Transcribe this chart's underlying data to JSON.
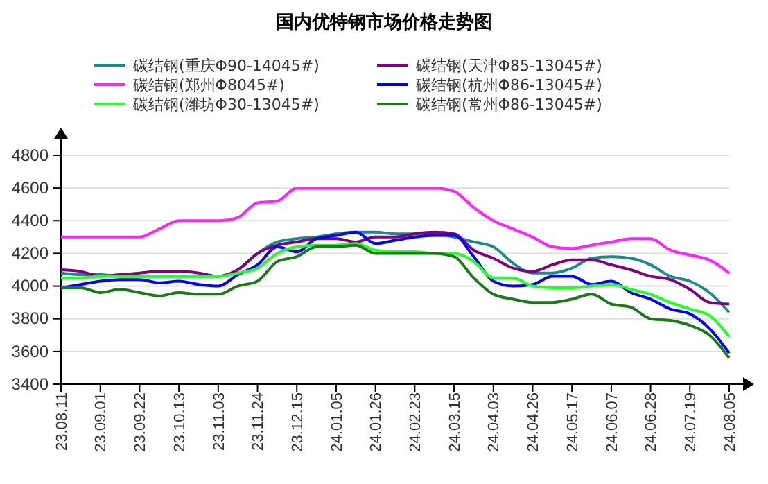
{
  "chart_data": {
    "type": "line",
    "title": "国内优特钢市场价格走势图",
    "categories": [
      "23.08.11",
      null,
      "23.09.01",
      null,
      "23.09.22",
      null,
      "23.10.13",
      null,
      "23.11.03",
      null,
      "23.11.24",
      null,
      "23.12.15",
      null,
      "24.01.05",
      null,
      "24.01.26",
      null,
      "24.02.23",
      null,
      "24.03.15",
      null,
      "24.04.03",
      null,
      "24.04.26",
      null,
      "24.05.17",
      null,
      "24.06.07",
      null,
      "24.06.28",
      null,
      "24.07.19",
      null,
      "24.08.05"
    ],
    "series": [
      {
        "name": "碳结钢(重庆Φ90-14045#)",
        "color": "#1a8a8a",
        "values": [
          4080,
          4070,
          4070,
          4060,
          4060,
          4060,
          4060,
          4060,
          4060,
          4100,
          4200,
          4270,
          4290,
          4300,
          4320,
          4330,
          4330,
          4320,
          4320,
          4320,
          4300,
          4270,
          4240,
          4140,
          4080,
          4080,
          4110,
          4170,
          4180,
          4170,
          4130,
          4060,
          4030,
          3960,
          3840
        ]
      },
      {
        "name": "碳结钢(天津Φ85-13045#)",
        "color": "#800080",
        "values": [
          4100,
          4090,
          4060,
          4070,
          4080,
          4090,
          4090,
          4080,
          4060,
          4100,
          4200,
          4250,
          4270,
          4290,
          4290,
          4270,
          4300,
          4300,
          4320,
          4330,
          4320,
          4220,
          4170,
          4110,
          4090,
          4130,
          4160,
          4160,
          4130,
          4100,
          4060,
          4040,
          3980,
          3900,
          3890
        ]
      },
      {
        "name": "碳结钢(郑州Φ8045#)",
        "color": "#ff22ff",
        "values": [
          4300,
          4300,
          4300,
          4300,
          4300,
          4350,
          4400,
          4400,
          4400,
          4420,
          4510,
          4520,
          4600,
          4600,
          4600,
          4600,
          4600,
          4600,
          4600,
          4600,
          4580,
          4480,
          4400,
          4350,
          4300,
          4240,
          4230,
          4250,
          4270,
          4290,
          4290,
          4220,
          4190,
          4160,
          4080
        ]
      },
      {
        "name": "碳结钢(杭州Φ86-13045#)",
        "color": "#0000ff",
        "values": [
          3990,
          4010,
          4030,
          4040,
          4040,
          4020,
          4030,
          4010,
          4000,
          4070,
          4130,
          4240,
          4210,
          4290,
          4310,
          4330,
          4260,
          4280,
          4300,
          4310,
          4310,
          4180,
          4030,
          4000,
          4010,
          4060,
          4060,
          4010,
          4030,
          3960,
          3920,
          3860,
          3830,
          3740,
          3590
        ]
      },
      {
        "name": "碳结钢(潍坊Φ30-13045#)",
        "color": "#22ff22",
        "values": [
          4050,
          4050,
          4060,
          4060,
          4060,
          4060,
          4060,
          4060,
          4060,
          4080,
          4110,
          4200,
          4240,
          4250,
          4250,
          4260,
          4220,
          4210,
          4210,
          4200,
          4200,
          4150,
          4050,
          4050,
          4000,
          3990,
          3990,
          4000,
          4010,
          3980,
          3950,
          3900,
          3860,
          3820,
          3690
        ]
      },
      {
        "name": "碳结钢(常州Φ86-13045#)",
        "color": "#1a7a1a",
        "values": [
          3990,
          3990,
          3960,
          3980,
          3960,
          3940,
          3960,
          3950,
          3950,
          4000,
          4030,
          4150,
          4180,
          4240,
          4240,
          4250,
          4200,
          4200,
          4200,
          4200,
          4180,
          4050,
          3950,
          3920,
          3900,
          3900,
          3920,
          3950,
          3890,
          3870,
          3800,
          3790,
          3760,
          3700,
          3560
        ]
      }
    ],
    "ylim": [
      3400,
      4800
    ],
    "yticks": [
      3400,
      3600,
      3800,
      4000,
      4200,
      4400,
      4600,
      4800
    ],
    "grid": "y",
    "legend": "top",
    "marker": "none",
    "line_style": "solid"
  }
}
